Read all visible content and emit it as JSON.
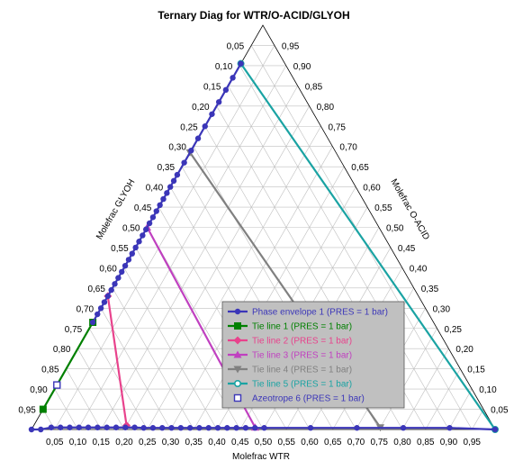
{
  "chart_data": {
    "type": "scatter",
    "subtype": "ternary",
    "title": "Ternary Diag for WTR/O-ACID/GLYOH",
    "axes": {
      "bottom": {
        "label": "Molefrac WTR",
        "component": "WTR"
      },
      "right": {
        "label": "Molefrac O-ACID",
        "component": "O-ACID"
      },
      "left": {
        "label": "Molefrac GLYOH",
        "component": "GLYOH"
      }
    },
    "tick_labels": {
      "bottom": [
        "0,05",
        "0,10",
        "0,15",
        "0,20",
        "0,25",
        "0,30",
        "0,35",
        "0,40",
        "0,45",
        "0,50",
        "0,55",
        "0,60",
        "0,65",
        "0,70",
        "0,75",
        "0,80",
        "0,85",
        "0,90",
        "0,95"
      ],
      "left": [
        "0,05",
        "0,10",
        "0,15",
        "0,20",
        "0,25",
        "0,30",
        "0,35",
        "0,40",
        "0,45",
        "0,50",
        "0,55",
        "0,60",
        "0,65",
        "0,70",
        "0,75",
        "0,80",
        "0,85",
        "0,90",
        "0,95"
      ],
      "right": [
        "0,05",
        "0,10",
        "0,15",
        "0,20",
        "0,25",
        "0,30",
        "0,35",
        "0,40",
        "0,45",
        "0,50",
        "0,55",
        "0,60",
        "0,65",
        "0,70",
        "0,75",
        "0,80",
        "0,85",
        "0,90",
        "0,95"
      ]
    },
    "grid": true,
    "legend_position": "bottom-right",
    "series": [
      {
        "name": "Phase envelope 1 (PRES = 1  bar)",
        "color": "#3b36b8",
        "marker": "circle",
        "points": [
          {
            "wtr": 0.0,
            "acid": 0.0
          },
          {
            "wtr": 0.02,
            "acid": 0.0
          },
          {
            "wtr": 0.04,
            "acid": 0.005
          },
          {
            "wtr": 0.06,
            "acid": 0.005
          },
          {
            "wtr": 0.08,
            "acid": 0.005
          },
          {
            "wtr": 0.1,
            "acid": 0.005
          },
          {
            "wtr": 0.12,
            "acid": 0.005
          },
          {
            "wtr": 0.14,
            "acid": 0.005
          },
          {
            "wtr": 0.16,
            "acid": 0.005
          },
          {
            "wtr": 0.18,
            "acid": 0.005
          },
          {
            "wtr": 0.2,
            "acid": 0.005
          },
          {
            "wtr": 0.22,
            "acid": 0.005
          },
          {
            "wtr": 0.24,
            "acid": 0.004
          },
          {
            "wtr": 0.26,
            "acid": 0.004
          },
          {
            "wtr": 0.28,
            "acid": 0.004
          },
          {
            "wtr": 0.3,
            "acid": 0.004
          },
          {
            "wtr": 0.32,
            "acid": 0.004
          },
          {
            "wtr": 0.34,
            "acid": 0.004
          },
          {
            "wtr": 0.36,
            "acid": 0.004
          },
          {
            "wtr": 0.38,
            "acid": 0.004
          },
          {
            "wtr": 0.4,
            "acid": 0.004
          },
          {
            "wtr": 0.42,
            "acid": 0.004
          },
          {
            "wtr": 0.44,
            "acid": 0.004
          },
          {
            "wtr": 0.46,
            "acid": 0.004
          },
          {
            "wtr": 0.48,
            "acid": 0.004
          },
          {
            "wtr": 0.5,
            "acid": 0.004
          },
          {
            "wtr": 0.6,
            "acid": 0.004
          },
          {
            "wtr": 0.7,
            "acid": 0.004
          },
          {
            "wtr": 0.8,
            "acid": 0.004
          },
          {
            "wtr": 0.9,
            "acid": 0.004
          },
          {
            "wtr": 1.0,
            "acid": 0.0
          },
          {
            "wtr": 0.0,
            "acid": 0.265
          },
          {
            "wtr": 0.0,
            "acid": 0.285
          },
          {
            "wtr": 0.0,
            "acid": 0.3
          },
          {
            "wtr": 0.0,
            "acid": 0.315
          },
          {
            "wtr": 0.0,
            "acid": 0.33
          },
          {
            "wtr": 0.0,
            "acid": 0.345
          },
          {
            "wtr": 0.0,
            "acid": 0.36
          },
          {
            "wtr": 0.0,
            "acid": 0.375
          },
          {
            "wtr": 0.0,
            "acid": 0.39
          },
          {
            "wtr": 0.0,
            "acid": 0.405
          },
          {
            "wtr": 0.0,
            "acid": 0.42
          },
          {
            "wtr": 0.0,
            "acid": 0.435
          },
          {
            "wtr": 0.0,
            "acid": 0.45
          },
          {
            "wtr": 0.0,
            "acid": 0.465
          },
          {
            "wtr": 0.0,
            "acid": 0.48
          },
          {
            "wtr": 0.0,
            "acid": 0.495
          },
          {
            "wtr": 0.0,
            "acid": 0.51
          },
          {
            "wtr": 0.0,
            "acid": 0.525
          },
          {
            "wtr": 0.0,
            "acid": 0.54
          },
          {
            "wtr": 0.0,
            "acid": 0.555
          },
          {
            "wtr": 0.0,
            "acid": 0.57
          },
          {
            "wtr": 0.0,
            "acid": 0.585
          },
          {
            "wtr": 0.0,
            "acid": 0.6
          },
          {
            "wtr": 0.0,
            "acid": 0.615
          },
          {
            "wtr": 0.0,
            "acid": 0.63
          },
          {
            "wtr": 0.0,
            "acid": 0.66
          },
          {
            "wtr": 0.0,
            "acid": 0.69
          },
          {
            "wtr": 0.0,
            "acid": 0.72
          },
          {
            "wtr": 0.0,
            "acid": 0.75
          },
          {
            "wtr": 0.0,
            "acid": 0.78
          },
          {
            "wtr": 0.0,
            "acid": 0.81
          },
          {
            "wtr": 0.0,
            "acid": 0.84
          },
          {
            "wtr": 0.0,
            "acid": 0.87
          },
          {
            "wtr": 0.0,
            "acid": 0.905
          }
        ]
      },
      {
        "name": "Tie line 1 (PRES = 1  bar)",
        "color": "#008000",
        "marker": "square",
        "points": [
          {
            "wtr": 0.0,
            "acid": 0.05
          },
          {
            "wtr": 0.0,
            "acid": 0.265
          }
        ]
      },
      {
        "name": "Tie line 2 (PRES = 1  bar)",
        "color": "#e8428c",
        "marker": "diamond",
        "points": [
          {
            "wtr": 0.2,
            "acid": 0.01
          },
          {
            "wtr": 0.0,
            "acid": 0.33
          }
        ]
      },
      {
        "name": "Tie line 3 (PRES = 1  bar)",
        "color": "#c040c0",
        "marker": "triangle-up",
        "points": [
          {
            "wtr": 0.48,
            "acid": 0.005
          },
          {
            "wtr": 0.0,
            "acid": 0.5
          }
        ]
      },
      {
        "name": "Tie line 4 (PRES = 1  bar)",
        "color": "#808080",
        "marker": "triangle-down",
        "points": [
          {
            "wtr": 0.75,
            "acid": 0.005
          },
          {
            "wtr": 0.0,
            "acid": 0.685
          }
        ]
      },
      {
        "name": "Tie line 5 (PRES = 1  bar)",
        "color": "#1aa3a3",
        "marker": "circle-open",
        "points": [
          {
            "wtr": 1.0,
            "acid": 0.0
          },
          {
            "wtr": 0.0,
            "acid": 0.905
          }
        ]
      },
      {
        "name": "Azeotrope 6 (PRES = 1  bar)",
        "color": "#3b36b8",
        "marker": "square-open",
        "points": [
          {
            "wtr": 0.0,
            "acid": 0.11
          }
        ]
      }
    ]
  }
}
